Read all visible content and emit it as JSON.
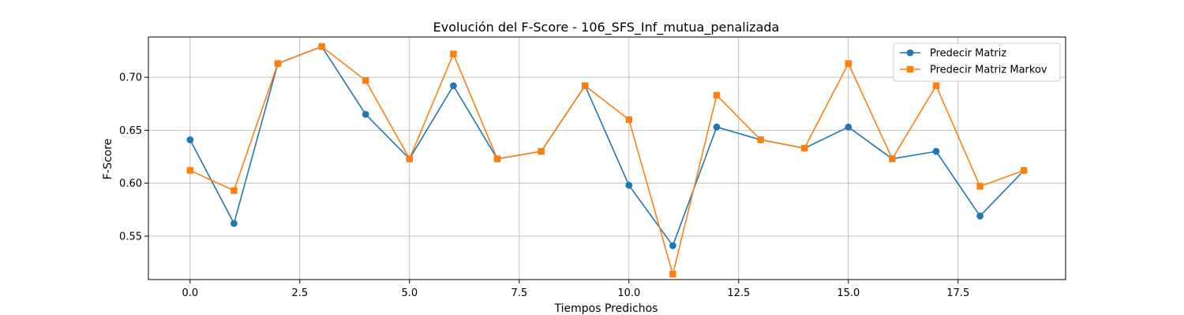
{
  "chart_data": {
    "type": "line",
    "title": "Evolución del F-Score - 106_SFS_Inf_mutua_penalizada",
    "xlabel": "Tiempos Predichos",
    "ylabel": "F-Score",
    "xlim": [
      -0.95,
      19.95
    ],
    "ylim": [
      0.509,
      0.738
    ],
    "xticks": [
      0.0,
      2.5,
      5.0,
      7.5,
      10.0,
      12.5,
      15.0,
      17.5
    ],
    "xtick_labels": [
      "0.0",
      "2.5",
      "5.0",
      "7.5",
      "10.0",
      "12.5",
      "15.0",
      "17.5"
    ],
    "yticks": [
      0.55,
      0.6,
      0.65,
      0.7
    ],
    "ytick_labels": [
      "0.55",
      "0.60",
      "0.65",
      "0.70"
    ],
    "grid": true,
    "legend_position": "top-right",
    "x": [
      0,
      1,
      2,
      3,
      4,
      5,
      6,
      7,
      8,
      9,
      10,
      11,
      12,
      13,
      14,
      15,
      16,
      17,
      18,
      19
    ],
    "series": [
      {
        "name": "Predecir Matriz",
        "color": "#1f77b4",
        "marker": "circle",
        "values": [
          0.641,
          0.562,
          0.713,
          0.729,
          0.665,
          0.623,
          0.692,
          0.623,
          0.63,
          0.692,
          0.598,
          0.541,
          0.653,
          0.641,
          0.633,
          0.653,
          0.623,
          0.63,
          0.569,
          0.612
        ]
      },
      {
        "name": "Predecir Matriz Markov",
        "color": "#ff7f0e",
        "marker": "square",
        "values": [
          0.612,
          0.593,
          0.713,
          0.729,
          0.697,
          0.623,
          0.722,
          0.623,
          0.63,
          0.692,
          0.66,
          0.514,
          0.683,
          0.641,
          0.633,
          0.713,
          0.623,
          0.692,
          0.597,
          0.612
        ]
      }
    ]
  }
}
